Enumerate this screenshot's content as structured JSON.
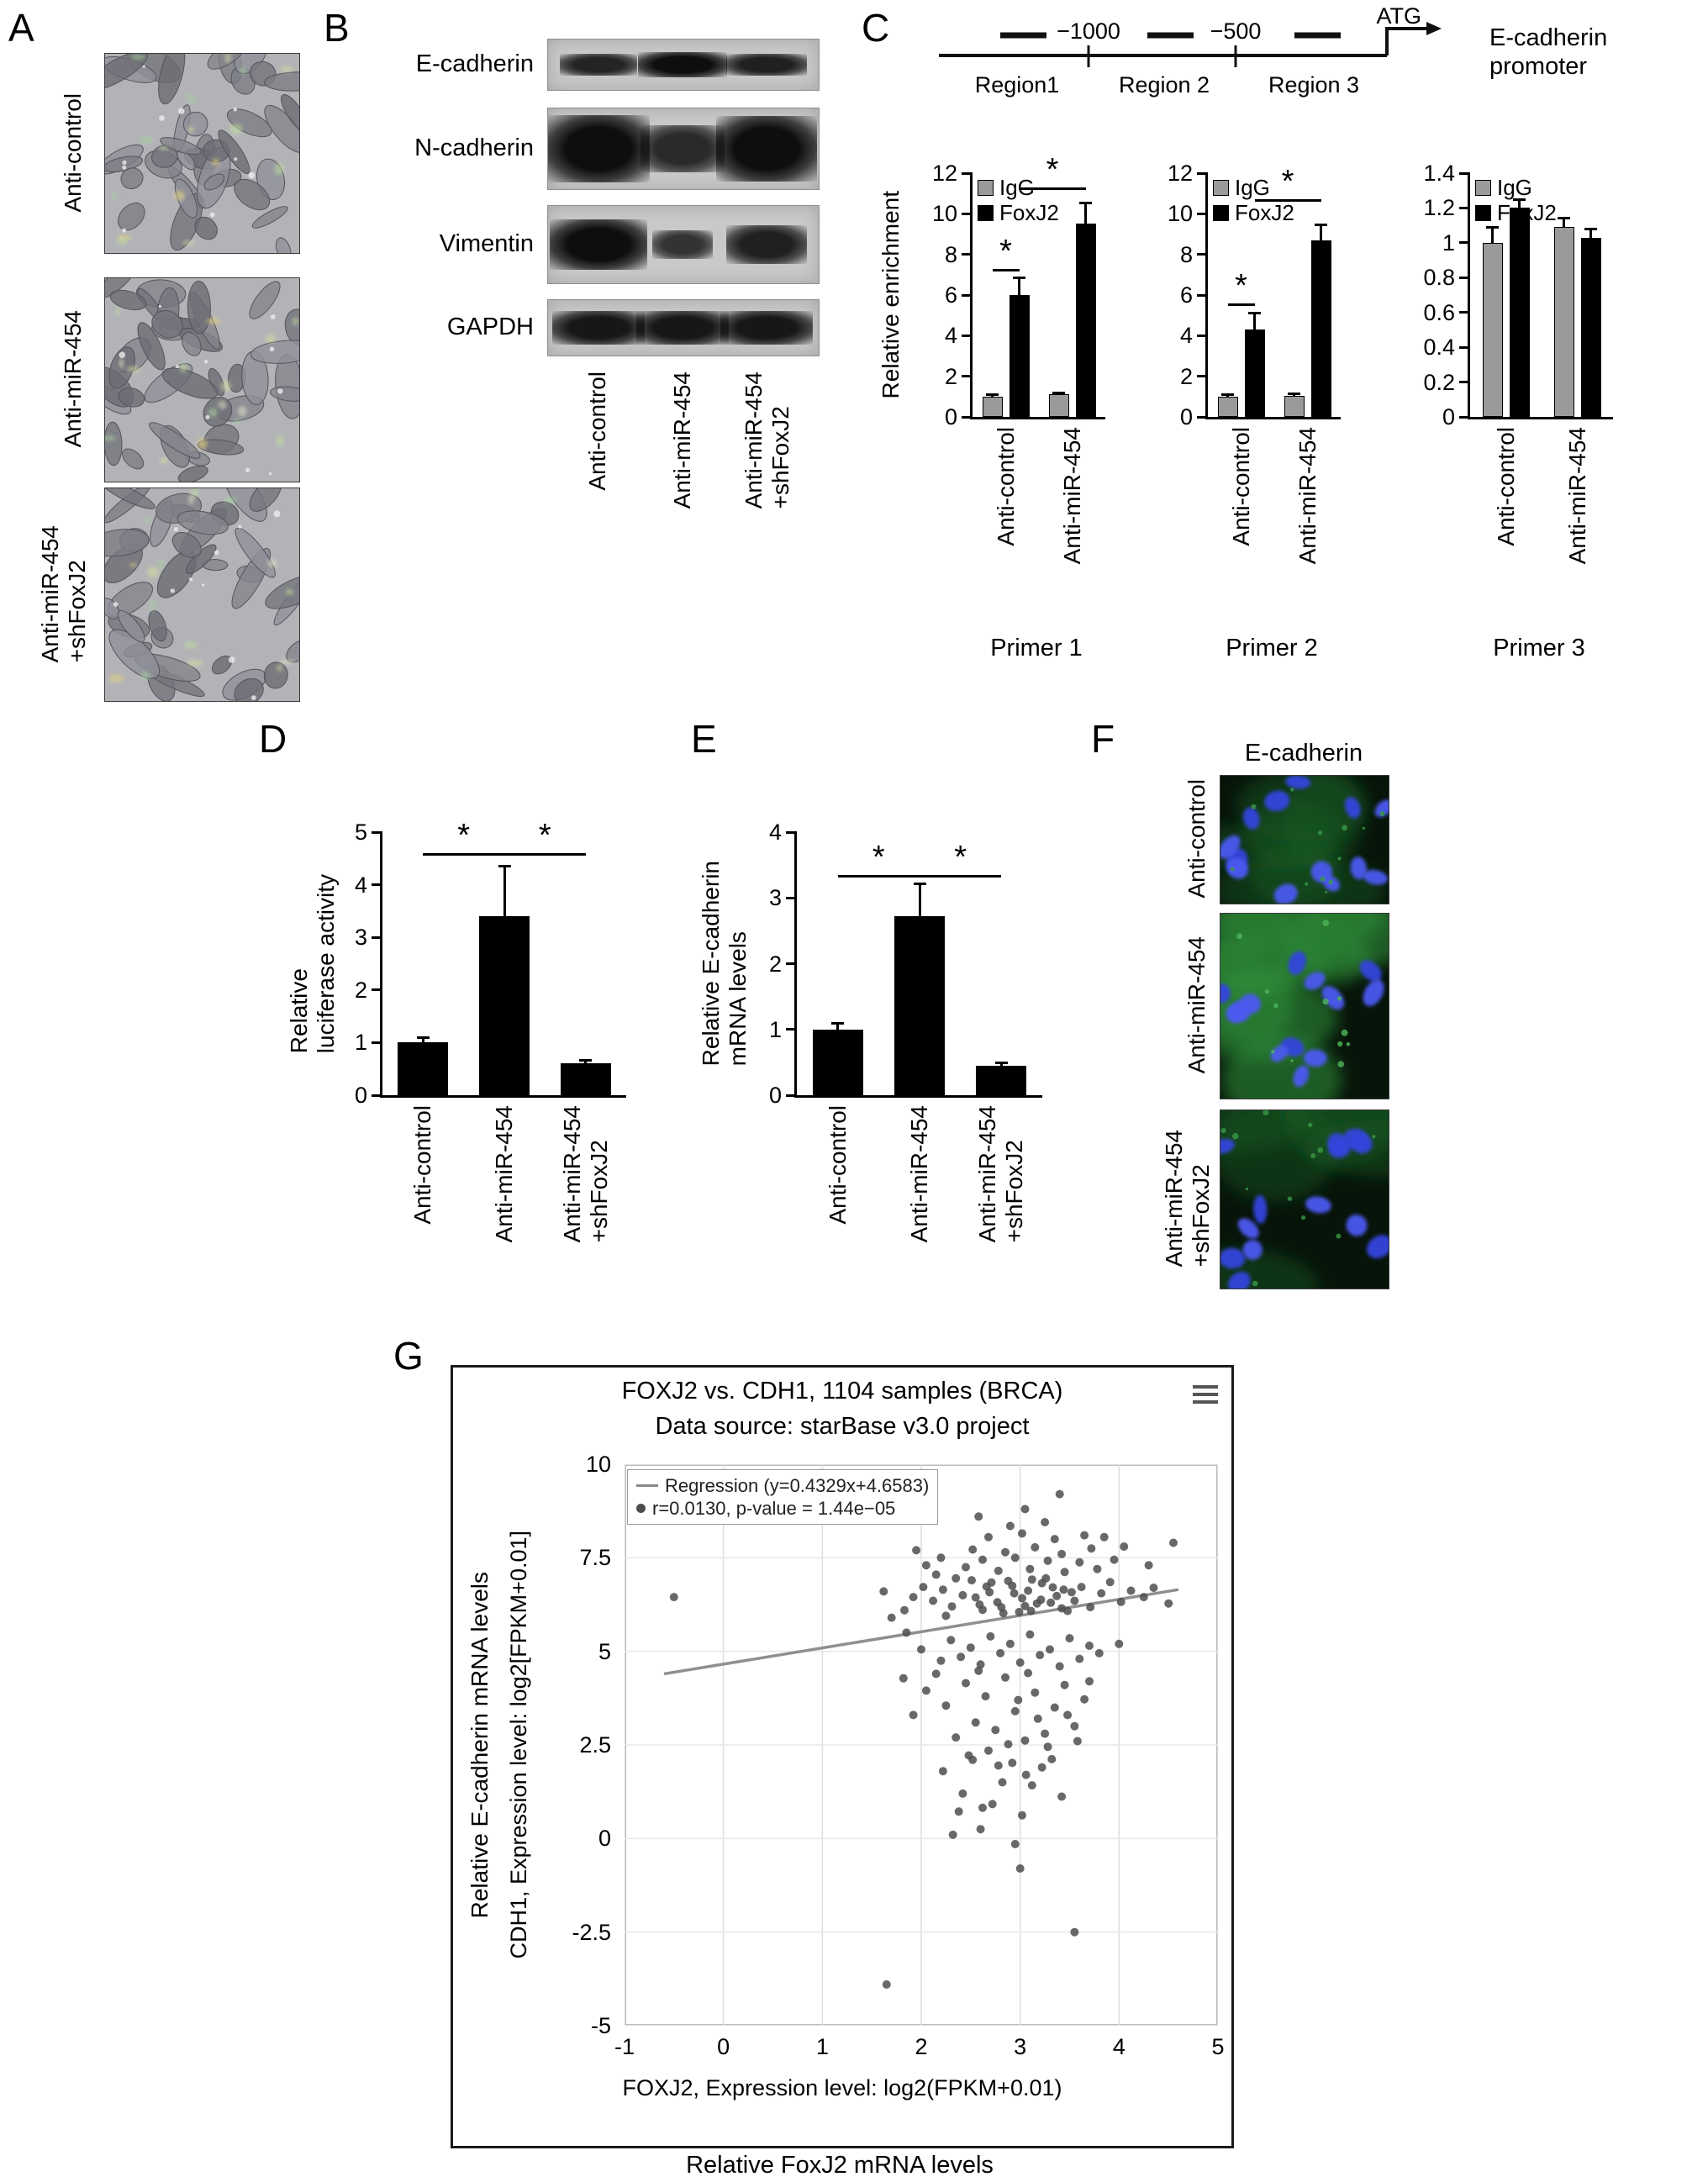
{
  "panels": {
    "a": {
      "letter": "A",
      "images": [
        {
          "label": "Anti-control"
        },
        {
          "label": "Anti-miR-454"
        },
        {
          "label": "Anti-miR-454\n+shFoxJ2"
        }
      ]
    },
    "b": {
      "letter": "B",
      "bands": [
        "E-cadherin",
        "N-cadherin",
        "Vimentin",
        "GAPDH"
      ],
      "lanes": [
        "Anti-control",
        "Anti-miR-454",
        "Anti-miR-454\n+shFoxJ2"
      ]
    },
    "c": {
      "letter": "C",
      "promoter": {
        "tick_labels": [
          "−1000",
          "−500"
        ],
        "atg": "ATG",
        "right_label": "E-cadherin\npromoter",
        "regions": [
          "Region1",
          "Region 2",
          "Region 3"
        ]
      }
    },
    "d": {
      "letter": "D"
    },
    "e": {
      "letter": "E"
    },
    "f": {
      "letter": "F",
      "title": "E-cadherin",
      "images": [
        {
          "label": "Anti-control"
        },
        {
          "label": "Anti-miR-454"
        },
        {
          "label": "Anti-miR-454\n+shFoxJ2"
        }
      ]
    },
    "g": {
      "letter": "G",
      "outer_ylabel": "Relative E-cadherin mRNA levels",
      "outer_xlabel": "Relative FoxJ2 mRNA levels"
    }
  },
  "chart_data": [
    {
      "type": "bar",
      "name": "chip-primer-1",
      "title": "Primer 1",
      "ylabel": "Relative enrichment",
      "ylim": [
        0,
        12
      ],
      "yticks": [
        0,
        2,
        4,
        6,
        8,
        10,
        12
      ],
      "categories": [
        "Anti-control",
        "Anti-miR-454"
      ],
      "legend": true,
      "series": [
        {
          "name": "IgG",
          "color": "#9a9a9a",
          "values": [
            1.0,
            1.1
          ],
          "errors": [
            0.08,
            0.1
          ]
        },
        {
          "name": "FoxJ2",
          "color": "#000000",
          "values": [
            6.0,
            9.5
          ],
          "errors": [
            0.85,
            1.05
          ]
        }
      ],
      "significance": [
        {
          "bars": [
            [
              0,
              0
            ],
            [
              0,
              1
            ]
          ],
          "y": 7.3,
          "label": "*"
        },
        {
          "bars": [
            [
              0,
              1
            ],
            [
              1,
              1
            ]
          ],
          "y": 11.3,
          "label": "*"
        }
      ]
    },
    {
      "type": "bar",
      "name": "chip-primer-2",
      "title": "Primer 2",
      "ylabel": "",
      "ylim": [
        0,
        12
      ],
      "yticks": [
        0,
        2,
        4,
        6,
        8,
        10,
        12
      ],
      "categories": [
        "Anti-control",
        "Anti-miR-454"
      ],
      "legend": true,
      "series": [
        {
          "name": "IgG",
          "color": "#9a9a9a",
          "values": [
            1.0,
            1.05
          ],
          "errors": [
            0.08,
            0.08
          ]
        },
        {
          "name": "FoxJ2",
          "color": "#000000",
          "values": [
            4.3,
            8.7
          ],
          "errors": [
            0.8,
            0.75
          ]
        }
      ],
      "significance": [
        {
          "bars": [
            [
              0,
              0
            ],
            [
              0,
              1
            ]
          ],
          "y": 5.6,
          "label": "*"
        },
        {
          "bars": [
            [
              0,
              1
            ],
            [
              1,
              1
            ]
          ],
          "y": 10.7,
          "label": "*"
        }
      ]
    },
    {
      "type": "bar",
      "name": "chip-primer-3",
      "title": "Primer 3",
      "ylabel": "",
      "ylim": [
        0,
        1.4
      ],
      "yticks": [
        0,
        0.2,
        0.4,
        0.6,
        0.8,
        1,
        1.2,
        1.4
      ],
      "categories": [
        "Anti-control",
        "Anti-miR-454"
      ],
      "legend": true,
      "series": [
        {
          "name": "IgG",
          "color": "#9a9a9a",
          "values": [
            1.0,
            1.09
          ],
          "errors": [
            0.09,
            0.05
          ]
        },
        {
          "name": "FoxJ2",
          "color": "#000000",
          "values": [
            1.2,
            1.03
          ],
          "errors": [
            0.05,
            0.05
          ]
        }
      ],
      "significance": []
    },
    {
      "type": "bar",
      "name": "luciferase-activity",
      "title": "",
      "ylabel": "Relative\nluciferase activity",
      "ylim": [
        0,
        5
      ],
      "yticks": [
        0,
        1,
        2,
        3,
        4,
        5
      ],
      "categories": [
        "Anti-control",
        "Anti-miR-454",
        "Anti-miR-454\n+shFoxJ2"
      ],
      "legend": false,
      "series": [
        {
          "name": "",
          "color": "#000000",
          "values": [
            1.0,
            3.4,
            0.6
          ],
          "errors": [
            0.1,
            0.95,
            0.06
          ]
        }
      ],
      "significance": [
        {
          "bars": [
            [
              0,
              0
            ],
            [
              1,
              0
            ]
          ],
          "y": 4.6,
          "label": "*"
        },
        {
          "bars": [
            [
              1,
              0
            ],
            [
              2,
              0
            ]
          ],
          "y": 4.6,
          "label": "*"
        }
      ]
    },
    {
      "type": "bar",
      "name": "ecadherin-mrna",
      "title": "",
      "ylabel": "Relative E-cadherin\nmRNA levels",
      "ylim": [
        0,
        4
      ],
      "yticks": [
        0,
        1,
        2,
        3,
        4
      ],
      "categories": [
        "Anti-control",
        "Anti-miR-454",
        "Anti-miR-454\n+shFoxJ2"
      ],
      "legend": false,
      "series": [
        {
          "name": "",
          "color": "#000000",
          "values": [
            1.0,
            2.72,
            0.45
          ],
          "errors": [
            0.09,
            0.5,
            0.04
          ]
        }
      ],
      "significance": [
        {
          "bars": [
            [
              0,
              0
            ],
            [
              1,
              0
            ]
          ],
          "y": 3.35,
          "label": "*"
        },
        {
          "bars": [
            [
              1,
              0
            ],
            [
              2,
              0
            ]
          ],
          "y": 3.35,
          "label": "*"
        }
      ]
    },
    {
      "type": "scatter",
      "name": "foxj2-cdh1-correlation",
      "title": "FOXJ2 vs. CDH1, 1104 samples (BRCA)",
      "subtitle": "Data source: starBase v3.0 project",
      "xlabel": "FOXJ2, Expression level: log2(FPKM+0.01)",
      "ylabel": "CDH1, Expression level: log2[FPKM+0.01]",
      "xlim": [
        -1,
        5
      ],
      "ylim": [
        -5,
        10
      ],
      "xticks": [
        -1,
        0,
        1,
        2,
        3,
        4,
        5
      ],
      "yticks": [
        10,
        7.5,
        5,
        2.5,
        0,
        -2.5,
        -5
      ],
      "legend": {
        "regression_label": "Regression (y=0.4329x+4.6583)",
        "stats_label": "r=0.0130, p-value = 1.44e−05"
      },
      "regression": {
        "slope": 0.4329,
        "intercept": 4.6583,
        "x_range": [
          -0.6,
          4.6
        ]
      },
      "point_color": "#4d4d4d",
      "points": [
        [
          2.62,
          6.11
        ],
        [
          2.71,
          6.84
        ],
        [
          2.83,
          6.02
        ],
        [
          2.94,
          6.55
        ],
        [
          3.05,
          6.21
        ],
        [
          3.12,
          6.92
        ],
        [
          3.21,
          6.38
        ],
        [
          3.33,
          6.71
        ],
        [
          3.42,
          6.15
        ],
        [
          3.52,
          6.58
        ],
        [
          2.55,
          6.44
        ],
        [
          2.66,
          6.73
        ],
        [
          2.77,
          6.31
        ],
        [
          2.88,
          6.88
        ],
        [
          2.99,
          6.05
        ],
        [
          3.08,
          6.62
        ],
        [
          3.17,
          6.28
        ],
        [
          3.26,
          6.95
        ],
        [
          3.37,
          6.48
        ],
        [
          3.48,
          6.08
        ],
        [
          2.51,
          6.9
        ],
        [
          2.59,
          6.25
        ],
        [
          2.69,
          6.58
        ],
        [
          2.81,
          6.18
        ],
        [
          2.92,
          6.75
        ],
        [
          3.02,
          6.42
        ],
        [
          3.11,
          6.08
        ],
        [
          3.22,
          6.82
        ],
        [
          3.31,
          6.3
        ],
        [
          3.44,
          6.65
        ],
        [
          3.55,
          6.35
        ],
        [
          3.62,
          6.72
        ],
        [
          3.71,
          6.18
        ],
        [
          3.82,
          6.55
        ],
        [
          3.91,
          6.85
        ],
        [
          4.02,
          6.32
        ],
        [
          4.12,
          6.62
        ],
        [
          4.25,
          6.45
        ],
        [
          4.35,
          6.7
        ],
        [
          4.5,
          6.28
        ],
        [
          2.42,
          6.5
        ],
        [
          2.31,
          6.2
        ],
        [
          2.22,
          6.65
        ],
        [
          2.12,
          6.35
        ],
        [
          2.02,
          6.72
        ],
        [
          1.92,
          6.45
        ],
        [
          1.83,
          6.1
        ],
        [
          2.35,
          6.95
        ],
        [
          2.25,
          5.95
        ],
        [
          2.15,
          7.05
        ],
        [
          2.45,
          7.25
        ],
        [
          2.62,
          7.45
        ],
        [
          2.78,
          7.15
        ],
        [
          2.95,
          7.5
        ],
        [
          3.1,
          7.2
        ],
        [
          3.28,
          7.42
        ],
        [
          3.45,
          7.12
        ],
        [
          3.6,
          7.38
        ],
        [
          3.78,
          7.2
        ],
        [
          3.95,
          7.45
        ],
        [
          2.52,
          7.72
        ],
        [
          2.85,
          7.65
        ],
        [
          3.15,
          7.78
        ],
        [
          3.42,
          7.6
        ],
        [
          3.72,
          7.75
        ],
        [
          2.68,
          8.05
        ],
        [
          3.02,
          8.15
        ],
        [
          3.35,
          8.0
        ],
        [
          3.65,
          8.1
        ],
        [
          2.9,
          8.35
        ],
        [
          3.25,
          8.45
        ],
        [
          3.05,
          8.8
        ],
        [
          3.4,
          9.2
        ],
        [
          2.58,
          8.6
        ],
        [
          3.85,
          8.05
        ],
        [
          4.05,
          7.8
        ],
        [
          4.3,
          7.3
        ],
        [
          4.55,
          7.9
        ],
        [
          2.2,
          7.5
        ],
        [
          2.05,
          7.3
        ],
        [
          1.95,
          7.7
        ],
        [
          2.3,
          5.3
        ],
        [
          2.5,
          5.1
        ],
        [
          2.7,
          5.4
        ],
        [
          2.9,
          5.2
        ],
        [
          3.1,
          5.45
        ],
        [
          3.3,
          5.05
        ],
        [
          3.5,
          5.35
        ],
        [
          3.7,
          5.15
        ],
        [
          2.4,
          4.85
        ],
        [
          2.6,
          4.65
        ],
        [
          2.8,
          4.95
        ],
        [
          3.0,
          4.7
        ],
        [
          3.2,
          4.9
        ],
        [
          3.4,
          4.6
        ],
        [
          3.6,
          4.8
        ],
        [
          2.2,
          4.75
        ],
        [
          2.0,
          5.05
        ],
        [
          1.85,
          5.5
        ],
        [
          3.8,
          4.95
        ],
        [
          4.0,
          5.2
        ],
        [
          1.7,
          5.9
        ],
        [
          1.62,
          6.6
        ],
        [
          2.05,
          3.95
        ],
        [
          2.25,
          3.55
        ],
        [
          2.45,
          4.15
        ],
        [
          2.55,
          3.1
        ],
        [
          2.65,
          3.8
        ],
        [
          2.75,
          2.9
        ],
        [
          2.85,
          4.3
        ],
        [
          2.95,
          3.4
        ],
        [
          3.05,
          2.62
        ],
        [
          3.15,
          3.9
        ],
        [
          3.25,
          2.8
        ],
        [
          3.35,
          3.5
        ],
        [
          3.45,
          4.1
        ],
        [
          3.55,
          3.0
        ],
        [
          3.65,
          3.72
        ],
        [
          2.35,
          2.7
        ],
        [
          2.15,
          4.4
        ],
        [
          2.58,
          4.48
        ],
        [
          2.88,
          2.52
        ],
        [
          3.08,
          4.42
        ],
        [
          3.28,
          2.45
        ],
        [
          3.48,
          3.3
        ],
        [
          2.68,
          2.35
        ],
        [
          2.98,
          3.7
        ],
        [
          3.18,
          3.2
        ],
        [
          1.92,
          3.3
        ],
        [
          1.82,
          4.28
        ],
        [
          3.58,
          2.6
        ],
        [
          3.7,
          4.2
        ],
        [
          2.48,
          2.22
        ],
        [
          2.22,
          1.8
        ],
        [
          2.42,
          1.2
        ],
        [
          2.62,
          0.82
        ],
        [
          2.82,
          1.5
        ],
        [
          3.02,
          0.62
        ],
        [
          3.22,
          1.9
        ],
        [
          3.42,
          1.12
        ],
        [
          2.52,
          2.1
        ],
        [
          2.92,
          2.02
        ],
        [
          3.12,
          1.42
        ],
        [
          2.72,
          0.92
        ],
        [
          3.32,
          2.12
        ],
        [
          2.38,
          0.72
        ],
        [
          3.06,
          1.7
        ],
        [
          2.78,
          1.95
        ],
        [
          2.6,
          0.25
        ],
        [
          2.95,
          -0.15
        ],
        [
          3.0,
          -0.8
        ],
        [
          2.32,
          0.1
        ],
        [
          3.55,
          -2.5
        ],
        [
          1.65,
          -3.9
        ],
        [
          -0.5,
          6.45
        ]
      ]
    }
  ]
}
